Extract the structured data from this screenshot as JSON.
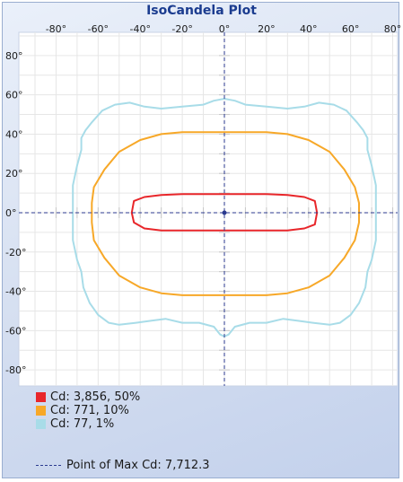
{
  "chart_data": {
    "type": "contour",
    "title": "IsoCandela Plot",
    "x_ticks": [
      "-80°",
      "-60°",
      "-40°",
      "-20°",
      "0°",
      "20°",
      "40°",
      "60°",
      "80°"
    ],
    "y_ticks": [
      "80°",
      "60°",
      "40°",
      "20°",
      "0°",
      "-20°",
      "-40°",
      "-60°",
      "-80°"
    ],
    "xlim": [
      -90,
      90
    ],
    "ylim": [
      -90,
      90
    ],
    "grid": true,
    "legend_position": "bottom",
    "series": [
      {
        "name": "Cd: 3,856, 50%",
        "color": "#e8262a",
        "contour": [
          [
            0,
            9.5
          ],
          [
            10,
            9.5
          ],
          [
            20,
            9.5
          ],
          [
            30,
            9
          ],
          [
            38,
            8
          ],
          [
            43,
            6
          ],
          [
            44,
            0
          ],
          [
            43,
            -6
          ],
          [
            38,
            -8
          ],
          [
            30,
            -9
          ],
          [
            20,
            -9
          ],
          [
            10,
            -9
          ],
          [
            0,
            -9
          ],
          [
            -10,
            -9
          ],
          [
            -20,
            -9
          ],
          [
            -30,
            -9
          ],
          [
            -38,
            -8
          ],
          [
            -43,
            -5
          ],
          [
            -44,
            0
          ],
          [
            -43,
            6
          ],
          [
            -38,
            8
          ],
          [
            -30,
            9
          ],
          [
            -20,
            9.5
          ],
          [
            -10,
            9.5
          ],
          [
            0,
            9.5
          ]
        ]
      },
      {
        "name": "Cd: 771, 10%",
        "color": "#f7a828",
        "contour": [
          [
            0,
            41
          ],
          [
            10,
            41
          ],
          [
            20,
            41
          ],
          [
            30,
            40
          ],
          [
            40,
            37
          ],
          [
            50,
            31
          ],
          [
            57,
            22
          ],
          [
            62,
            13
          ],
          [
            64,
            5
          ],
          [
            64,
            0
          ],
          [
            64,
            -5
          ],
          [
            62,
            -14
          ],
          [
            57,
            -23
          ],
          [
            50,
            -32
          ],
          [
            40,
            -38
          ],
          [
            30,
            -41
          ],
          [
            20,
            -42
          ],
          [
            10,
            -42
          ],
          [
            0,
            -42
          ],
          [
            -10,
            -42
          ],
          [
            -20,
            -42
          ],
          [
            -30,
            -41
          ],
          [
            -40,
            -38
          ],
          [
            -50,
            -32
          ],
          [
            -57,
            -23
          ],
          [
            -62,
            -14
          ],
          [
            -63,
            -5
          ],
          [
            -63,
            0
          ],
          [
            -63,
            5
          ],
          [
            -62,
            13
          ],
          [
            -57,
            22
          ],
          [
            -50,
            31
          ],
          [
            -40,
            37
          ],
          [
            -30,
            40
          ],
          [
            -20,
            41
          ],
          [
            -10,
            41
          ],
          [
            0,
            41
          ]
        ]
      },
      {
        "name": "Cd: 77, 1%",
        "color": "#a8dce8",
        "contour": [
          [
            0,
            58
          ],
          [
            5,
            57
          ],
          [
            10,
            55
          ],
          [
            20,
            54
          ],
          [
            30,
            53
          ],
          [
            38,
            54
          ],
          [
            45,
            56
          ],
          [
            52,
            55
          ],
          [
            58,
            52
          ],
          [
            63,
            46
          ],
          [
            66,
            42
          ],
          [
            68,
            38
          ],
          [
            68,
            32
          ],
          [
            70,
            24
          ],
          [
            72,
            14
          ],
          [
            72,
            5
          ],
          [
            72,
            0
          ],
          [
            72,
            -5
          ],
          [
            72,
            -14
          ],
          [
            70,
            -24
          ],
          [
            68,
            -30
          ],
          [
            67,
            -38
          ],
          [
            64,
            -46
          ],
          [
            60,
            -52
          ],
          [
            55,
            -56
          ],
          [
            50,
            -57
          ],
          [
            42,
            -56
          ],
          [
            35,
            -55
          ],
          [
            28,
            -54
          ],
          [
            20,
            -56
          ],
          [
            12,
            -56
          ],
          [
            5,
            -58
          ],
          [
            2,
            -62
          ],
          [
            0,
            -63
          ],
          [
            -2,
            -62
          ],
          [
            -5,
            -58
          ],
          [
            -12,
            -56
          ],
          [
            -20,
            -56
          ],
          [
            -28,
            -54
          ],
          [
            -35,
            -55
          ],
          [
            -42,
            -56
          ],
          [
            -50,
            -57
          ],
          [
            -55,
            -56
          ],
          [
            -60,
            -52
          ],
          [
            -64,
            -46
          ],
          [
            -67,
            -38
          ],
          [
            -68,
            -30
          ],
          [
            -70,
            -24
          ],
          [
            -72,
            -14
          ],
          [
            -72,
            -5
          ],
          [
            -72,
            0
          ],
          [
            -72,
            5
          ],
          [
            -72,
            14
          ],
          [
            -70,
            24
          ],
          [
            -68,
            32
          ],
          [
            -68,
            38
          ],
          [
            -66,
            42
          ],
          [
            -63,
            46
          ],
          [
            -58,
            52
          ],
          [
            -52,
            55
          ],
          [
            -45,
            56
          ],
          [
            -38,
            54
          ],
          [
            -30,
            53
          ],
          [
            -20,
            54
          ],
          [
            -10,
            55
          ],
          [
            -5,
            57
          ],
          [
            0,
            58
          ]
        ]
      }
    ],
    "max_point": {
      "x": 0,
      "y": 0,
      "label": "Point of Max Cd: 7,712.3",
      "color": "#2b3a8f"
    },
    "colors": {
      "grid": "#e6e6e6",
      "plot_bg": "#ffffff",
      "axis_cross": "#2b3a8f",
      "minor_marks": "#c8c8c8"
    }
  }
}
